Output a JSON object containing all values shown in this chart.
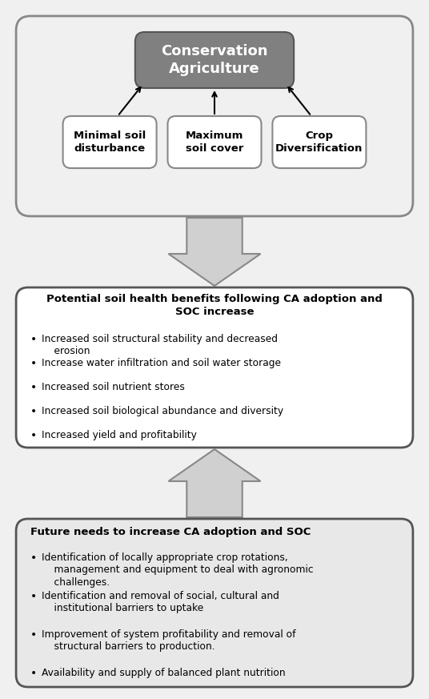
{
  "bg_color": "#f0f0f0",
  "outer_box_color": "#f0f0f0",
  "outer_box_stroke": "#888888",
  "ca_box_color": "#808080",
  "ca_box_stroke": "#555555",
  "ca_text": "Conservation\nAgriculture",
  "ca_text_color": "#ffffff",
  "sub_boxes": [
    {
      "text": "Minimal soil\ndisturbance"
    },
    {
      "text": "Maximum\nsoil cover"
    },
    {
      "text": "Crop\nDiversification"
    }
  ],
  "sub_box_color": "#ffffff",
  "sub_box_stroke": "#888888",
  "arrow_color": "#d0d0d0",
  "arrow_stroke": "#888888",
  "middle_box_color": "#ffffff",
  "middle_box_stroke": "#555555",
  "middle_title": "Potential soil health benefits following CA adoption and\nSOC increase",
  "middle_bullets": [
    "Increased soil structural stability and decreased\n    erosion",
    "Increase water infiltration and soil water storage",
    "Increased soil nutrient stores",
    "Increased soil biological abundance and diversity",
    "Increased yield and profitability"
  ],
  "bottom_box_color": "#e8e8e8",
  "bottom_box_stroke": "#555555",
  "bottom_title": "Future needs to increase CA adoption and SOC",
  "bottom_bullets": [
    "Identification of locally appropriate crop rotations,\n    management and equipment to deal with agronomic\n    challenges.",
    "Identification and removal of social, cultural and\n    institutional barriers to uptake",
    "Improvement of system profitability and removal of\n    structural barriers to production.",
    "Availability and supply of balanced plant nutrition"
  ]
}
